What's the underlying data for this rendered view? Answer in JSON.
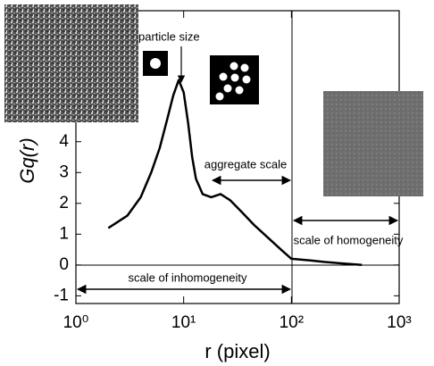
{
  "chart_data": {
    "type": "line",
    "x_label": "r (pixel)",
    "y_label": "Gq(r)",
    "annotations": [
      "particle size",
      "aggregate scale",
      "scale of homogeneity",
      "scale of inhomogeneity"
    ],
    "x": [
      2,
      3,
      4,
      5,
      6,
      7,
      8,
      9,
      10,
      11,
      12,
      13,
      15,
      18,
      22,
      27,
      35,
      45,
      60,
      80,
      100,
      150,
      200,
      300,
      450
    ],
    "series": [
      {
        "color": "#000000",
        "values": [
          1.2,
          1.6,
          2.2,
          3.0,
          3.8,
          4.7,
          5.5,
          6.0,
          5.6,
          4.6,
          3.5,
          2.8,
          2.3,
          2.2,
          2.3,
          2.1,
          1.7,
          1.3,
          0.9,
          0.5,
          0.2,
          0.15,
          0.1,
          0.05,
          0.0
        ]
      }
    ],
    "x_log": true,
    "xlim": [
      1,
      1000
    ],
    "xticks": [
      {
        "value": 1,
        "label": "10⁰"
      },
      {
        "value": 10,
        "label": "10¹"
      },
      {
        "value": 100,
        "label": "10²"
      },
      {
        "value": 1000,
        "label": "10³"
      }
    ],
    "ylim": [
      -1.25,
      8.25
    ],
    "yticks": [
      -1,
      0,
      1,
      2,
      3,
      4
    ]
  }
}
